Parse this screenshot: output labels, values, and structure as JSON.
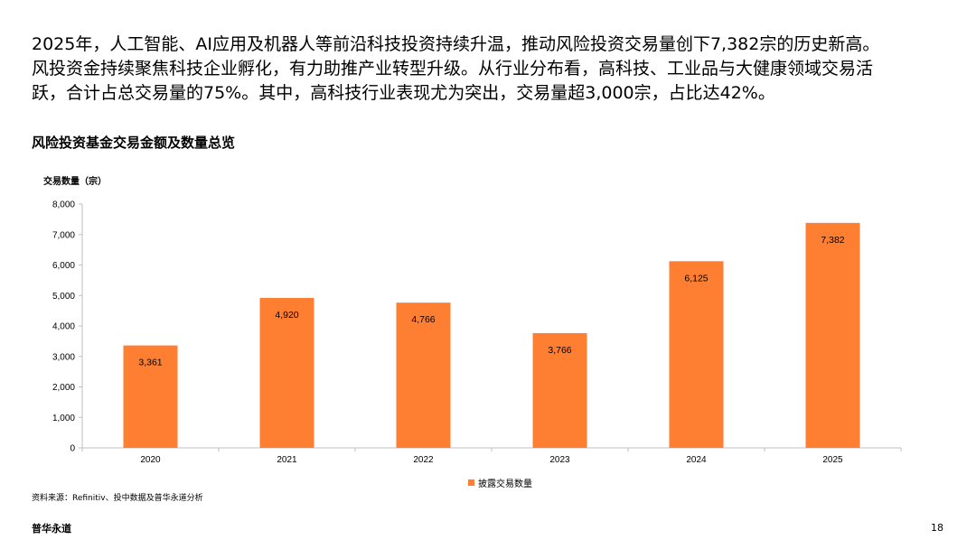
{
  "intro": {
    "line1": "2025年，人工智能、AI应用及机器人等前沿科技投资持续升温，推动风险投资交易量创下7,382宗的历史新高。",
    "line2": "风投资金持续聚焦科技企业孵化，有力助推产业转型升级。从行业分布看，高科技、工业品与大健康领域交易活",
    "line3": "跃，合计占总交易量的75%。其中，高科技行业表现尤为突出，交易量超3,000宗，占比达42%。"
  },
  "footer": {
    "source": "资料来源：Refinitiv、投中数据及普华永道分析",
    "brand": "普华永道",
    "page_number": "18"
  },
  "colors": {
    "bar": "#FF7F32",
    "axis": "#BFBFBF"
  },
  "chart_data": {
    "type": "bar",
    "title": "风险投资基金交易金额及数量总览",
    "ylabel": "交易数量（宗）",
    "categories": [
      "2020",
      "2021",
      "2022",
      "2023",
      "2024",
      "2025"
    ],
    "series": [
      {
        "name": "披露交易数量",
        "values": [
          3361,
          4920,
          4766,
          3766,
          6125,
          7382
        ]
      }
    ],
    "data_labels": [
      "3,361",
      "4,920",
      "4,766",
      "3,766",
      "6,125",
      "7,382"
    ],
    "ylim": [
      0,
      8000
    ],
    "yticks": [
      "0",
      "1,000",
      "2,000",
      "3,000",
      "4,000",
      "5,000",
      "6,000",
      "7,000",
      "8,000"
    ],
    "grid": false,
    "legend_position": "bottom-center"
  }
}
